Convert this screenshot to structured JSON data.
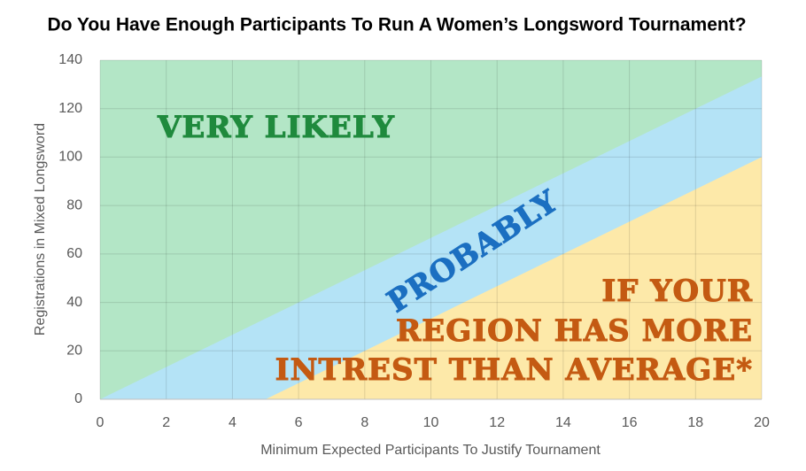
{
  "chart_data": {
    "type": "area",
    "title": "Do You Have Enough Participants To Run A Women’s Longsword Tournament?",
    "x_label": "Minimum Expected Participants To Justify Tournament",
    "y_label": "Registrations in Mixed Longsword",
    "x": [
      0,
      5,
      20
    ],
    "series": [
      {
        "color": "#fde9a9",
        "values": [
          0,
          0,
          100
        ]
      },
      {
        "color": "#b4e3f6",
        "values": [
          0,
          33.3,
          133.3
        ]
      }
    ],
    "background_color": "#b3e6c6",
    "xlim": [
      0,
      20
    ],
    "xticks": [
      0,
      2,
      4,
      6,
      8,
      10,
      12,
      14,
      16,
      18,
      20
    ],
    "ylim": [
      0,
      140
    ],
    "yticks": [
      0,
      20,
      40,
      60,
      80,
      100,
      120,
      140
    ],
    "grid": true,
    "annotations": [
      {
        "text": "VERY LIKELY",
        "color": "#1f8a3d"
      },
      {
        "text": "PROBABLY",
        "color": "#1b6fc1"
      },
      {
        "text": "IF YOUR",
        "color": "#c45a12"
      },
      {
        "text": "REGION HAS MORE",
        "color": "#c45a12"
      },
      {
        "text": "INTREST THAN AVERAGE*",
        "color": "#c45a12"
      }
    ]
  }
}
